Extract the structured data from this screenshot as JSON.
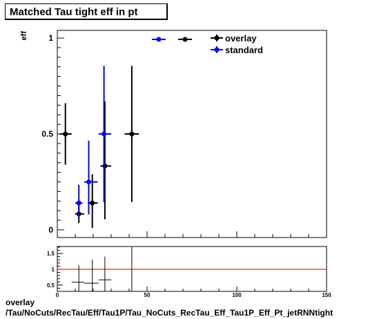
{
  "title": "Matched Tau tight eff in pt",
  "footer": {
    "line1": "overlay",
    "line2": "/Tau/NoCuts/RecTau/Eff/Tau1P/Tau_NoCuts_RecTau_Eff_Tau1P_Eff_Pt_jetRNNtight"
  },
  "chart_data": [
    {
      "type": "scatter",
      "title": "Matched Tau tight eff in pt",
      "ylabel": "eff",
      "xlim": [
        0,
        150
      ],
      "ylim": [
        -0.04,
        1.04
      ],
      "y_ticks": [
        0,
        0.5,
        1
      ],
      "y_tick_labels": [
        "0",
        "0.5",
        "1"
      ],
      "legend": {
        "position": "top-right",
        "entries": [
          {
            "name": "overlay",
            "color": "#000000"
          },
          {
            "name": "standard",
            "color": "#0000ff"
          }
        ]
      },
      "series": [
        {
          "name": "overlay",
          "color": "#000000",
          "points": [
            {
              "x": 4.5,
              "xlo": 1.5,
              "xhi": 8,
              "y": 0.5,
              "ylo": 0.34,
              "yhi": 0.66
            },
            {
              "x": 12,
              "xlo": 10,
              "xhi": 15,
              "y": 0.083,
              "ylo": 0.035,
              "yhi": 0.14
            },
            {
              "x": 19.5,
              "xlo": 17,
              "xhi": 22.5,
              "y": 0.14,
              "ylo": 0.01,
              "yhi": 0.29
            },
            {
              "x": 26.5,
              "xlo": 24,
              "xhi": 30,
              "y": 0.333,
              "ylo": 0.055,
              "yhi": 0.67
            },
            {
              "x": 41.5,
              "xlo": 37.5,
              "xhi": 45.5,
              "y": 0.5,
              "ylo": 0.145,
              "yhi": 0.855
            }
          ]
        },
        {
          "name": "standard",
          "color": "#0000ff",
          "points": [
            {
              "x": 12,
              "xlo": 10,
              "xhi": 14,
              "y": 0.14,
              "ylo": 0.07,
              "yhi": 0.235
            },
            {
              "x": 17.5,
              "xlo": 15,
              "xhi": 22.5,
              "y": 0.25,
              "ylo": 0.08,
              "yhi": 0.465
            },
            {
              "x": 26,
              "xlo": 23,
              "xhi": 30,
              "y": 0.5,
              "ylo": 0.145,
              "yhi": 0.855
            }
          ]
        }
      ]
    },
    {
      "type": "scatter",
      "title": "",
      "xlim": [
        0,
        150
      ],
      "ylim": [
        0.3,
        1.72
      ],
      "x_ticks": [
        0,
        50,
        100,
        150
      ],
      "x_tick_labels": [
        "0",
        "50",
        "100",
        "150"
      ],
      "y_ticks": [
        0.5,
        1,
        1.5
      ],
      "y_tick_labels": [
        "0.5",
        "1",
        "1.5"
      ],
      "reference_line": {
        "y": 1,
        "color": "#cc0000"
      },
      "series": [
        {
          "name": "",
          "color": "#000000",
          "points": [
            {
              "x": 12,
              "xlo": 8,
              "xhi": 15,
              "y": 0.59,
              "ylo": 0.3,
              "yhi": 1.13
            },
            {
              "x": 19.5,
              "xlo": 15,
              "xhi": 23,
              "y": 0.56,
              "ylo": 0.3,
              "yhi": 1.3
            },
            {
              "x": 26.5,
              "xlo": 23,
              "xhi": 30,
              "y": 0.667,
              "ylo": 0.3,
              "yhi": 1.4
            },
            {
              "x": 41.5,
              "xlo": 41.5,
              "xhi": 41.5,
              "y": 1.0,
              "ylo": 0.3,
              "yhi": 1.72
            }
          ]
        }
      ]
    }
  ]
}
